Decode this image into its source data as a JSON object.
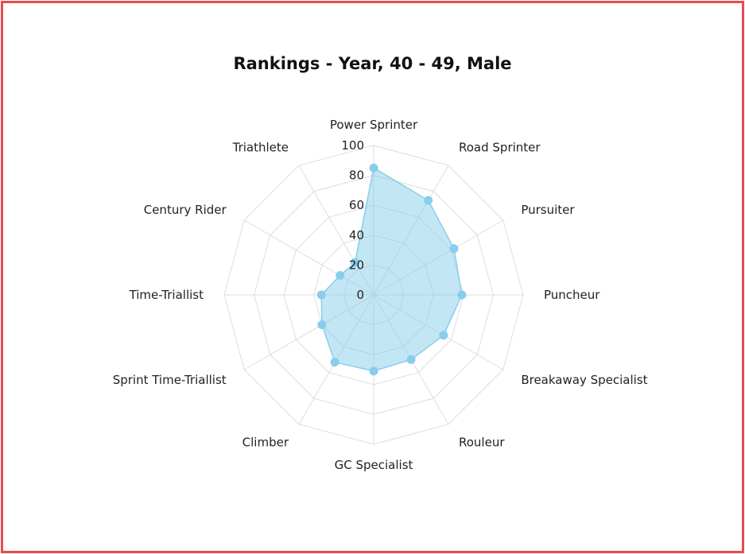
{
  "chart_data": {
    "type": "radar",
    "title": "Rankings - Year, 40 - 49, Male",
    "categories": [
      "Power Sprinter",
      "Road Sprinter",
      "Pursuiter",
      "Puncheur",
      "Breakaway Specialist",
      "Rouleur",
      "GC Specialist",
      "Climber",
      "Sprint Time-Triallist",
      "Time-Triallist",
      "Century Rider",
      "Triathlete"
    ],
    "values": [
      85,
      73,
      62,
      59,
      54,
      50,
      51,
      52,
      40,
      35,
      26,
      25
    ],
    "rlim": [
      0,
      100
    ],
    "ticks": [
      "0",
      "20",
      "40",
      "60",
      "80",
      "100"
    ],
    "grid": true,
    "colors": {
      "series_fill": "#87CEEB",
      "series_stroke": "#87CEEB",
      "grid": "#dddddd",
      "frame": "#e84c4c"
    }
  }
}
